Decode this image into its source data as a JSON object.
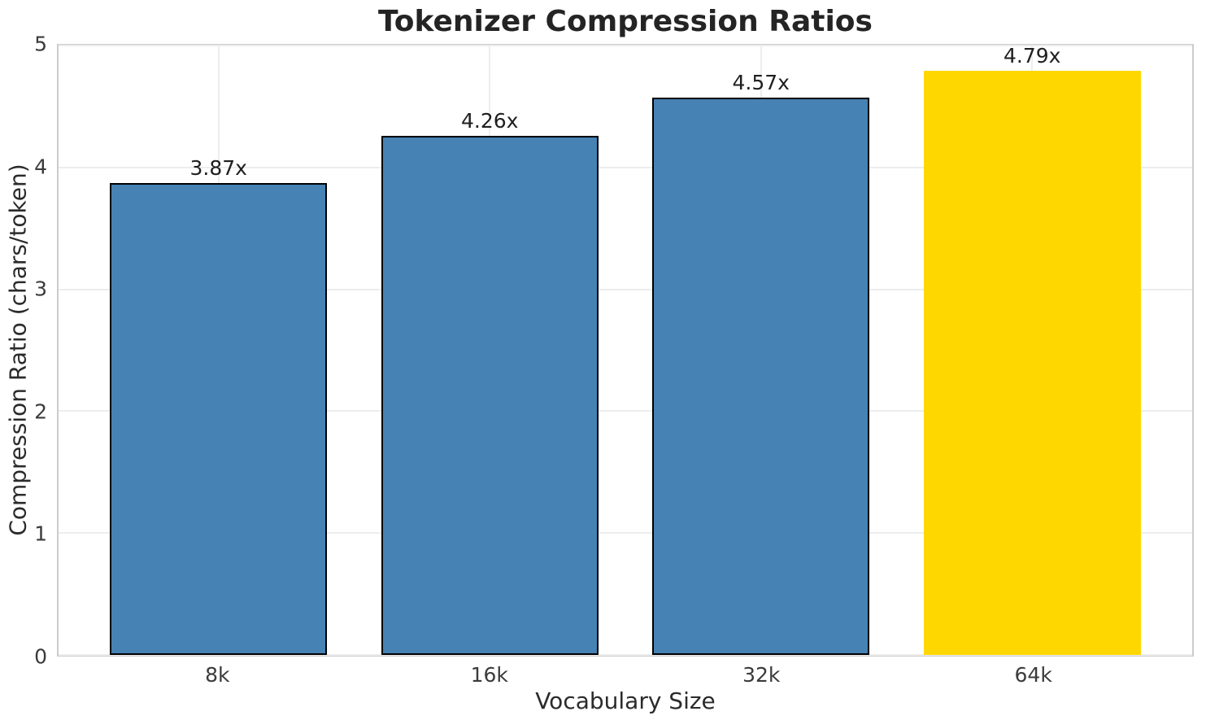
{
  "chart_data": {
    "type": "bar",
    "title": "Tokenizer Compression Ratios",
    "xlabel": "Vocabulary Size",
    "ylabel": "Compression Ratio (chars/token)",
    "categories": [
      "8k",
      "16k",
      "32k",
      "64k"
    ],
    "values": [
      3.87,
      4.26,
      4.57,
      4.79
    ],
    "value_labels": [
      "3.87x",
      "4.26x",
      "4.57x",
      "4.79x"
    ],
    "ylim": [
      0,
      5
    ],
    "yticks": [
      "0",
      "1",
      "2",
      "3",
      "4",
      "5"
    ],
    "grid": true,
    "legend": false,
    "bar_width": 0.8,
    "bar_colors": [
      "#4682B4",
      "#4682B4",
      "#4682B4",
      "#FFD700"
    ],
    "bar_edge_colors": [
      "#000000",
      "#000000",
      "#000000",
      "none"
    ],
    "highlight_index": 3
  },
  "colors": {
    "background": "#FFFFFF",
    "bar_blue": "#4682B4",
    "bar_gold": "#FFD700",
    "bar_edge": "#000000",
    "grid": "#EDEDED",
    "spine": "#CCCCCC",
    "title_text": "#242424",
    "tick_text": "#3B3B3B",
    "label_text": "#2B2B2B"
  }
}
